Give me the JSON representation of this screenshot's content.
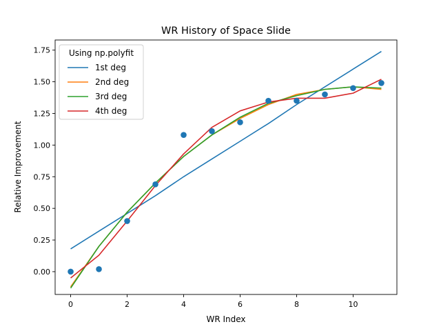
{
  "chart_data": {
    "type": "line",
    "title": "WR History of Space Slide",
    "xlabel": "WR Index",
    "ylabel": "Relative Improvement",
    "xlim": [
      -0.55,
      11.55
    ],
    "ylim": [
      -0.18,
      1.83
    ],
    "xticks": [
      0,
      2,
      4,
      6,
      8,
      10
    ],
    "xtick_labels": [
      "0",
      "2",
      "4",
      "6",
      "8",
      "10"
    ],
    "yticks": [
      0,
      0.25,
      0.5,
      0.75,
      1.0,
      1.25,
      1.5,
      1.75
    ],
    "ytick_labels": [
      "0.00",
      "0.25",
      "0.50",
      "0.75",
      "1.00",
      "1.25",
      "1.50",
      "1.75"
    ],
    "grid": false,
    "legend": {
      "title": "Using np.polyfit",
      "placement": "top-left"
    },
    "scatter": {
      "color": "#1f77b4",
      "x": [
        0,
        1,
        2,
        3,
        4,
        5,
        6,
        7,
        8,
        9,
        10,
        11
      ],
      "y": [
        0.0,
        0.02,
        0.4,
        0.69,
        1.08,
        1.11,
        1.18,
        1.35,
        1.35,
        1.4,
        1.45,
        1.49
      ]
    },
    "x": [
      0,
      1,
      2,
      3,
      4,
      5,
      6,
      7,
      8,
      9,
      10,
      11
    ],
    "series": [
      {
        "name": "1st deg",
        "color": "#1f77b4",
        "values": [
          0.18,
          0.32,
          0.46,
          0.6,
          0.75,
          0.89,
          1.03,
          1.17,
          1.32,
          1.46,
          1.6,
          1.74
        ]
      },
      {
        "name": "2nd deg",
        "color": "#ff7f0e",
        "values": [
          -0.12,
          0.2,
          0.47,
          0.7,
          0.91,
          1.08,
          1.21,
          1.32,
          1.4,
          1.44,
          1.46,
          1.44
        ]
      },
      {
        "name": "3rd deg",
        "color": "#2ca02c",
        "values": [
          -0.13,
          0.2,
          0.47,
          0.7,
          0.91,
          1.08,
          1.22,
          1.33,
          1.39,
          1.44,
          1.46,
          1.45
        ]
      },
      {
        "name": "4th deg",
        "color": "#d62728",
        "values": [
          -0.05,
          0.13,
          0.4,
          0.68,
          0.93,
          1.14,
          1.27,
          1.34,
          1.37,
          1.37,
          1.41,
          1.52
        ]
      }
    ]
  }
}
